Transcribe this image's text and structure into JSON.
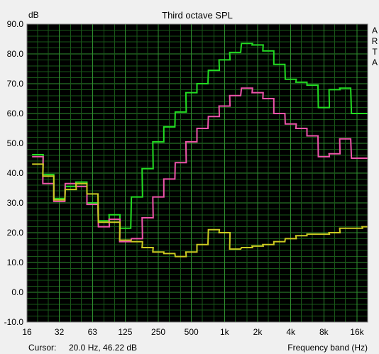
{
  "chart_data": {
    "type": "line",
    "title": "Third octave SPL",
    "ylabel": "dB",
    "xlabel": "Frequency band (Hz)",
    "cursor_label": "Cursor:",
    "cursor_value": "20.0 Hz, 46.22 dB",
    "side_letters": [
      "A",
      "R",
      "T",
      "A"
    ],
    "ylim": [
      -10,
      90
    ],
    "yticks": [
      "90.0",
      "80.0",
      "70.0",
      "60.0",
      "50.0",
      "40.0",
      "30.0",
      "20.0",
      "10.0",
      "0.0",
      "-10.0"
    ],
    "xticks": [
      "16",
      "32",
      "63",
      "125",
      "250",
      "500",
      "1k",
      "2k",
      "4k",
      "8k",
      "16k"
    ],
    "x": [
      20,
      25,
      31.5,
      40,
      50,
      63,
      80,
      100,
      125,
      160,
      200,
      250,
      315,
      400,
      500,
      630,
      800,
      1000,
      1250,
      1600,
      2000,
      2500,
      3150,
      4000,
      5000,
      6300,
      8000,
      10000,
      12500,
      16000,
      20000
    ],
    "series": [
      {
        "color": "#22dd22",
        "values": [
          46.2,
          39.5,
          31.5,
          35.5,
          37.0,
          30.0,
          24.0,
          26.0,
          21.5,
          32.0,
          41.5,
          50.5,
          55.5,
          60.5,
          67.0,
          70.0,
          74.5,
          78.0,
          80.5,
          83.5,
          83.0,
          81.0,
          76.5,
          71.5,
          70.5,
          69.5,
          62.0,
          68.0,
          68.5,
          60.0,
          60.0
        ]
      },
      {
        "color": "#ee55aa",
        "values": [
          45.5,
          36.5,
          30.5,
          36.5,
          35.5,
          29.5,
          22.0,
          24.5,
          17.0,
          18.0,
          25.0,
          32.0,
          38.0,
          43.5,
          50.5,
          55.0,
          59.0,
          62.5,
          66.0,
          68.5,
          67.0,
          65.0,
          60.0,
          56.5,
          55.0,
          52.5,
          45.5,
          46.5,
          51.5,
          45.0,
          45.0
        ]
      },
      {
        "color": "#cccc22",
        "values": [
          43.0,
          39.0,
          31.0,
          34.5,
          36.5,
          33.0,
          23.5,
          23.5,
          17.5,
          17.0,
          15.0,
          13.5,
          13.0,
          12.0,
          13.5,
          16.0,
          21.0,
          20.0,
          14.5,
          15.0,
          15.5,
          16.0,
          17.0,
          18.0,
          19.0,
          19.5,
          19.5,
          20.0,
          21.5,
          21.5,
          22.0
        ]
      }
    ],
    "grid": true,
    "background": "#000000",
    "grid_color": "#1f7a1f"
  }
}
